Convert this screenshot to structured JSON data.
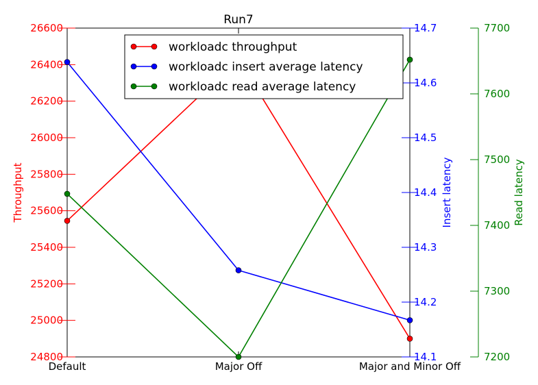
{
  "chart_data": {
    "type": "line",
    "title": "Run7",
    "categories": [
      "Default",
      "Major Off",
      "Major and Minor Off"
    ],
    "axes": {
      "throughput": {
        "label": "Throughput",
        "color": "#ff0000",
        "ylim": [
          24800,
          26600
        ],
        "ticks": [
          "24800",
          "25000",
          "25200",
          "25400",
          "25600",
          "25800",
          "26000",
          "26200",
          "26400",
          "26600"
        ]
      },
      "insert": {
        "label": "Insert latency",
        "color": "#0000ff",
        "ylim": [
          14.1,
          14.7
        ],
        "ticks": [
          "14.1",
          "14.2",
          "14.3",
          "14.4",
          "14.5",
          "14.6",
          "14.7"
        ]
      },
      "read": {
        "label": "Read latency",
        "color": "#008000",
        "ylim": [
          7200,
          7700
        ],
        "ticks": [
          "7200",
          "7300",
          "7400",
          "7500",
          "7600",
          "7700"
        ]
      }
    },
    "series": [
      {
        "name": "workloadc throughput",
        "axis": "throughput",
        "color": "#ff0000",
        "values": [
          25545,
          26430,
          24900
        ]
      },
      {
        "name": "workloadc insert average latency",
        "axis": "insert",
        "color": "#0000ff",
        "values": [
          14.638,
          14.258,
          14.167
        ]
      },
      {
        "name": "workloadc read average latency",
        "axis": "read",
        "color": "#008000",
        "values": [
          7448,
          7200,
          7652
        ]
      }
    ],
    "legend_position": "top-center",
    "grid": false
  }
}
